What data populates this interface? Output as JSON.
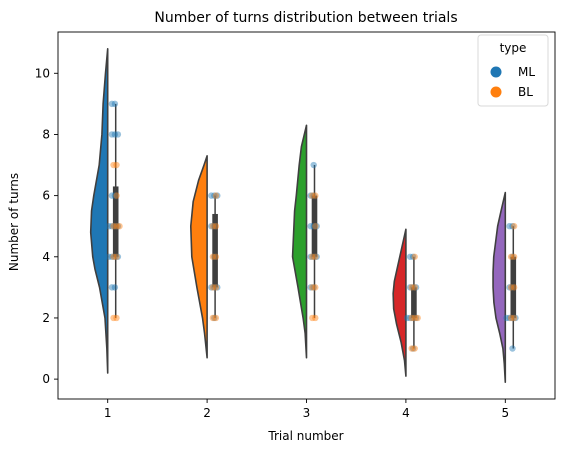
{
  "chart_data": {
    "type": "violin",
    "title": "Number of turns distribution between trials",
    "xlabel": "Trial number",
    "ylabel": "Number of turns",
    "categories": [
      "1",
      "2",
      "3",
      "4",
      "5"
    ],
    "ylim": [
      -0.65,
      11.35
    ],
    "yticks": [
      0,
      2,
      4,
      6,
      8,
      10
    ],
    "grid": false,
    "violin_colors": [
      "#1f77b4",
      "#ff7f0e",
      "#2ca02c",
      "#d62728",
      "#9467bd"
    ],
    "violins": [
      {
        "category": "1",
        "min": 0.2,
        "max": 10.8,
        "shape": [
          [
            0.2,
            0.0
          ],
          [
            1,
            0.05
          ],
          [
            2,
            0.16
          ],
          [
            3,
            0.48
          ],
          [
            3.6,
            0.75
          ],
          [
            4,
            0.88
          ],
          [
            4.8,
            1.0
          ],
          [
            5.5,
            0.95
          ],
          [
            6,
            0.82
          ],
          [
            7,
            0.5
          ],
          [
            8,
            0.34
          ],
          [
            9,
            0.27
          ],
          [
            10,
            0.13
          ],
          [
            10.8,
            0.0
          ]
        ],
        "quartiles": [
          4,
          5,
          6.3
        ],
        "whisker": [
          2,
          9
        ]
      },
      {
        "category": "2",
        "min": 0.7,
        "max": 7.3,
        "shape": [
          [
            0.7,
            0.0
          ],
          [
            1.5,
            0.15
          ],
          [
            2,
            0.27
          ],
          [
            3,
            0.6
          ],
          [
            4,
            0.9
          ],
          [
            5,
            0.96
          ],
          [
            5.8,
            0.82
          ],
          [
            6.5,
            0.5
          ],
          [
            7,
            0.18
          ],
          [
            7.3,
            0.0
          ]
        ],
        "quartiles": [
          3,
          5,
          5.4
        ],
        "whisker": [
          2,
          6
        ]
      },
      {
        "category": "3",
        "min": 0.7,
        "max": 8.3,
        "shape": [
          [
            0.7,
            0.0
          ],
          [
            1.5,
            0.08
          ],
          [
            2,
            0.2
          ],
          [
            3,
            0.5
          ],
          [
            4,
            0.82
          ],
          [
            4.5,
            0.78
          ],
          [
            5.5,
            0.7
          ],
          [
            6,
            0.6
          ],
          [
            7,
            0.43
          ],
          [
            7.6,
            0.3
          ],
          [
            8.3,
            0.0
          ]
        ],
        "quartiles": [
          4,
          5,
          6
        ],
        "whisker": [
          2,
          7
        ]
      },
      {
        "category": "4",
        "min": 0.1,
        "max": 4.9,
        "shape": [
          [
            0.1,
            0.0
          ],
          [
            0.6,
            0.08
          ],
          [
            1.2,
            0.28
          ],
          [
            1.8,
            0.55
          ],
          [
            2.3,
            0.72
          ],
          [
            2.8,
            0.75
          ],
          [
            3.2,
            0.68
          ],
          [
            3.7,
            0.48
          ],
          [
            4.2,
            0.28
          ],
          [
            4.6,
            0.12
          ],
          [
            4.9,
            0.0
          ]
        ],
        "quartiles": [
          2,
          3,
          3
        ],
        "whisker": [
          1,
          4
        ]
      },
      {
        "category": "5",
        "min": -0.1,
        "max": 6.1,
        "shape": [
          [
            -0.1,
            0.0
          ],
          [
            0.5,
            0.06
          ],
          [
            1,
            0.14
          ],
          [
            1.5,
            0.33
          ],
          [
            2,
            0.55
          ],
          [
            2.5,
            0.67
          ],
          [
            3,
            0.72
          ],
          [
            3.5,
            0.72
          ],
          [
            4,
            0.68
          ],
          [
            5,
            0.45
          ],
          [
            5.5,
            0.25
          ],
          [
            6.1,
            0.0
          ]
        ],
        "quartiles": [
          2,
          3,
          4
        ],
        "whisker": [
          1,
          5
        ]
      }
    ],
    "series": [
      {
        "name": "ML",
        "color": "#1f77b4",
        "points": [
          [
            1,
            9
          ],
          [
            1,
            9
          ],
          [
            1,
            8
          ],
          [
            1,
            8
          ],
          [
            1,
            8
          ],
          [
            1,
            6
          ],
          [
            1,
            6
          ],
          [
            1,
            5
          ],
          [
            1,
            5
          ],
          [
            1,
            5
          ],
          [
            1,
            5
          ],
          [
            1,
            4
          ],
          [
            1,
            4
          ],
          [
            1,
            4
          ],
          [
            1,
            4
          ],
          [
            1,
            3
          ],
          [
            1,
            3
          ],
          [
            2,
            6
          ],
          [
            2,
            6
          ],
          [
            2,
            6
          ],
          [
            2,
            5
          ],
          [
            2,
            5
          ],
          [
            2,
            4
          ],
          [
            2,
            3
          ],
          [
            2,
            3
          ],
          [
            2,
            3
          ],
          [
            2,
            2
          ],
          [
            3,
            7
          ],
          [
            3,
            6
          ],
          [
            3,
            6
          ],
          [
            3,
            5
          ],
          [
            3,
            5
          ],
          [
            3,
            5
          ],
          [
            3,
            4
          ],
          [
            3,
            4
          ],
          [
            3,
            4
          ],
          [
            3,
            3
          ],
          [
            3,
            3
          ],
          [
            4,
            4
          ],
          [
            4,
            4
          ],
          [
            4,
            3
          ],
          [
            4,
            3
          ],
          [
            4,
            3
          ],
          [
            4,
            2
          ],
          [
            4,
            2
          ],
          [
            4,
            2
          ],
          [
            4,
            2
          ],
          [
            4,
            1
          ],
          [
            5,
            5
          ],
          [
            5,
            5
          ],
          [
            5,
            4
          ],
          [
            5,
            3
          ],
          [
            5,
            3
          ],
          [
            5,
            2
          ],
          [
            5,
            2
          ],
          [
            5,
            2
          ],
          [
            5,
            2
          ],
          [
            5,
            1
          ]
        ]
      },
      {
        "name": "BL",
        "color": "#ff7f0e",
        "points": [
          [
            1,
            7
          ],
          [
            1,
            7
          ],
          [
            1,
            6
          ],
          [
            1,
            5
          ],
          [
            1,
            5
          ],
          [
            1,
            5
          ],
          [
            1,
            4
          ],
          [
            1,
            4
          ],
          [
            1,
            2
          ],
          [
            1,
            2
          ],
          [
            2,
            6
          ],
          [
            2,
            5
          ],
          [
            2,
            5
          ],
          [
            2,
            4
          ],
          [
            2,
            4
          ],
          [
            2,
            3
          ],
          [
            2,
            3
          ],
          [
            2,
            2
          ],
          [
            2,
            2
          ],
          [
            3,
            6
          ],
          [
            3,
            6
          ],
          [
            3,
            5
          ],
          [
            3,
            4
          ],
          [
            3,
            4
          ],
          [
            3,
            3
          ],
          [
            3,
            3
          ],
          [
            3,
            2
          ],
          [
            3,
            2
          ],
          [
            4,
            4
          ],
          [
            4,
            3
          ],
          [
            4,
            3
          ],
          [
            4,
            2
          ],
          [
            4,
            2
          ],
          [
            4,
            2
          ],
          [
            4,
            1
          ],
          [
            4,
            1
          ],
          [
            5,
            5
          ],
          [
            5,
            4
          ],
          [
            5,
            4
          ],
          [
            5,
            3
          ],
          [
            5,
            3
          ],
          [
            5,
            2
          ],
          [
            5,
            2
          ]
        ]
      }
    ],
    "legend": {
      "title": "type",
      "position": "top-right",
      "entries": [
        "ML",
        "BL"
      ]
    }
  }
}
